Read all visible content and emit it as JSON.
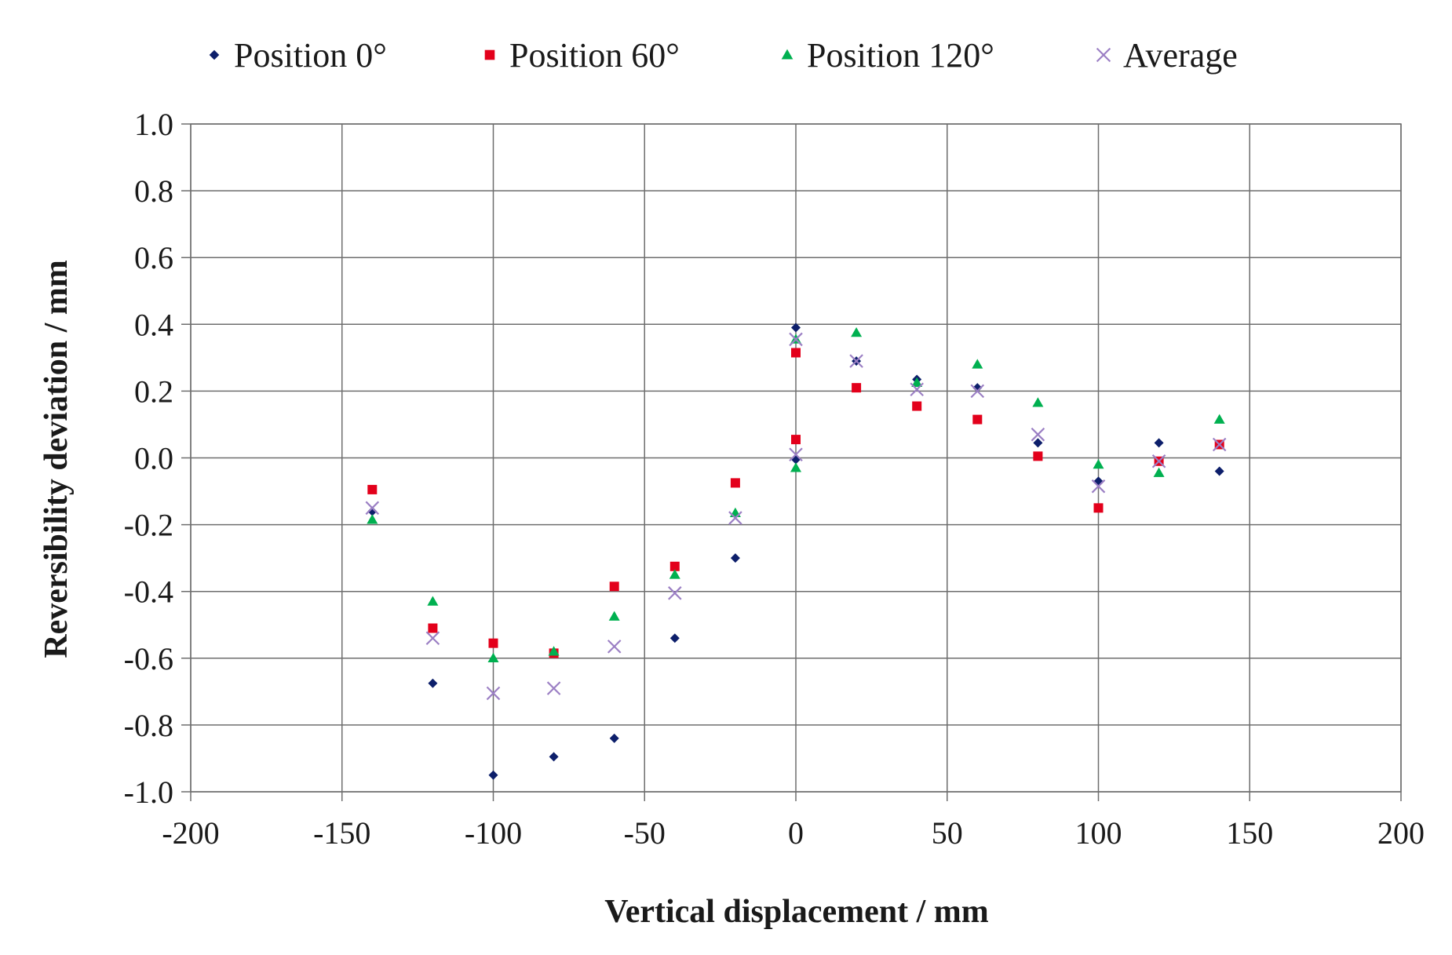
{
  "chart_data": {
    "type": "scatter",
    "title": "",
    "xlabel": "Vertical displacement / mm",
    "ylabel": "Reversibility deviation / mm",
    "xlim": [
      -200,
      200
    ],
    "ylim": [
      -1.0,
      1.0
    ],
    "x_ticks": [
      -200,
      -150,
      -100,
      -50,
      0,
      50,
      100,
      150,
      200
    ],
    "x_tick_labels": [
      "-200",
      "-150",
      "-100",
      "-50",
      "0",
      "50",
      "100",
      "150",
      "200"
    ],
    "y_ticks": [
      -1.0,
      -0.8,
      -0.6,
      -0.4,
      -0.2,
      0.0,
      0.2,
      0.4,
      0.6,
      0.8,
      1.0
    ],
    "y_tick_labels": [
      "-1.0",
      "-0.8",
      "-0.6",
      "-0.4",
      "-0.2",
      "0.0",
      "0.2",
      "0.4",
      "0.6",
      "0.8",
      "1.0"
    ],
    "grid": true,
    "legend_position": "top",
    "series": [
      {
        "name": "Position 0°",
        "marker": "diamond",
        "color": "#0d1f6b",
        "points": [
          [
            -140,
            -0.16
          ],
          [
            -120,
            -0.675
          ],
          [
            -100,
            -0.95
          ],
          [
            -80,
            -0.895
          ],
          [
            -60,
            -0.84
          ],
          [
            -40,
            -0.54
          ],
          [
            -20,
            -0.3
          ],
          [
            0,
            -0.005
          ],
          [
            0,
            0.39
          ],
          [
            20,
            0.29
          ],
          [
            40,
            0.235
          ],
          [
            60,
            0.21
          ],
          [
            80,
            0.045
          ],
          [
            100,
            -0.07
          ],
          [
            120,
            0.045
          ],
          [
            140,
            -0.04
          ]
        ]
      },
      {
        "name": "Position 60°",
        "marker": "square",
        "color": "#e3001b",
        "points": [
          [
            -140,
            -0.095
          ],
          [
            -120,
            -0.51
          ],
          [
            -100,
            -0.555
          ],
          [
            -80,
            -0.585
          ],
          [
            -60,
            -0.385
          ],
          [
            -40,
            -0.325
          ],
          [
            -20,
            -0.075
          ],
          [
            0,
            0.055
          ],
          [
            0,
            0.315
          ],
          [
            20,
            0.21
          ],
          [
            40,
            0.155
          ],
          [
            60,
            0.115
          ],
          [
            80,
            0.005
          ],
          [
            100,
            -0.15
          ],
          [
            120,
            -0.01
          ],
          [
            140,
            0.04
          ]
        ]
      },
      {
        "name": "Position 120°",
        "marker": "triangle",
        "color": "#00b050",
        "points": [
          [
            -140,
            -0.185
          ],
          [
            -120,
            -0.43
          ],
          [
            -100,
            -0.6
          ],
          [
            -80,
            -0.58
          ],
          [
            -60,
            -0.475
          ],
          [
            -40,
            -0.35
          ],
          [
            -20,
            -0.165
          ],
          [
            0,
            -0.03
          ],
          [
            0,
            0.355
          ],
          [
            20,
            0.375
          ],
          [
            40,
            0.225
          ],
          [
            60,
            0.28
          ],
          [
            80,
            0.165
          ],
          [
            100,
            -0.02
          ],
          [
            120,
            -0.045
          ],
          [
            140,
            0.115
          ]
        ]
      },
      {
        "name": "Average",
        "marker": "x",
        "color": "#9b7fc4",
        "points": [
          [
            -140,
            -0.15
          ],
          [
            -120,
            -0.54
          ],
          [
            -100,
            -0.705
          ],
          [
            -80,
            -0.69
          ],
          [
            -60,
            -0.565
          ],
          [
            -40,
            -0.405
          ],
          [
            -20,
            -0.18
          ],
          [
            0,
            0.01
          ],
          [
            0,
            0.355
          ],
          [
            20,
            0.29
          ],
          [
            40,
            0.205
          ],
          [
            60,
            0.2
          ],
          [
            80,
            0.07
          ],
          [
            100,
            -0.085
          ],
          [
            120,
            -0.01
          ],
          [
            140,
            0.04
          ]
        ]
      }
    ]
  }
}
